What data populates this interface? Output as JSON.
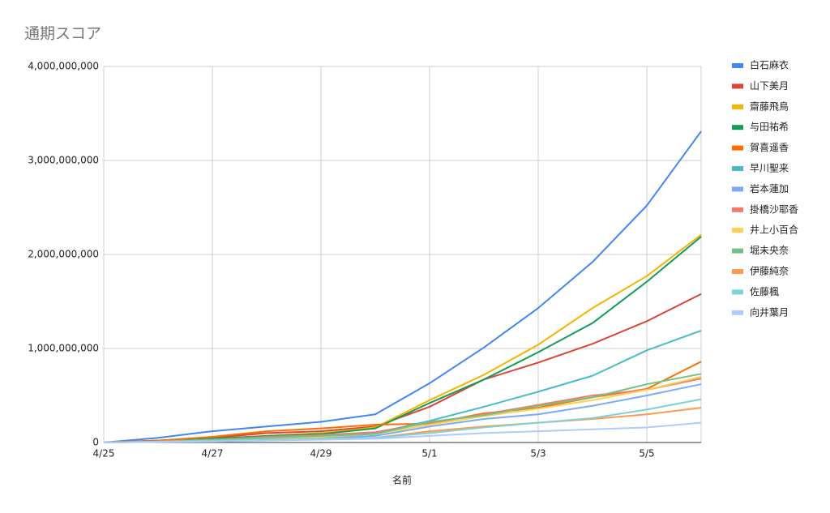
{
  "chart_data": {
    "type": "line",
    "title": "通期スコア",
    "x_label": "名前",
    "categories": [
      "4/25",
      null,
      "4/27",
      null,
      "4/29",
      null,
      "5/1",
      null,
      "5/3",
      null,
      "5/5",
      null
    ],
    "ylim": [
      0,
      4000000000
    ],
    "yticks": [
      0,
      {
        "value": 1000000000,
        "label": "1,000,000,000"
      },
      {
        "value": 2000000000,
        "label": "2,000,000,000"
      },
      {
        "value": 3000000000,
        "label": "3,000,000,000"
      },
      {
        "value": 4000000000,
        "label": "4,000,000,000"
      }
    ],
    "grid": true,
    "legend": "right",
    "series": [
      {
        "name": "白石麻衣",
        "color": "#4285f4",
        "values": [
          0,
          50000000,
          120000000,
          170000000,
          220000000,
          300000000,
          630000000,
          1010000000,
          1430000000,
          1920000000,
          2520000000,
          3310000000
        ]
      },
      {
        "name": "山下美月",
        "color": "#db4437",
        "values": [
          0,
          20000000,
          50000000,
          100000000,
          120000000,
          170000000,
          380000000,
          670000000,
          850000000,
          1050000000,
          1290000000,
          1580000000
        ]
      },
      {
        "name": "齋藤飛鳥",
        "color": "#f4b400",
        "values": [
          0,
          20000000,
          40000000,
          70000000,
          100000000,
          160000000,
          450000000,
          720000000,
          1040000000,
          1430000000,
          1770000000,
          2210000000
        ]
      },
      {
        "name": "与田祐希",
        "color": "#0f9d58",
        "values": [
          0,
          20000000,
          40000000,
          70000000,
          90000000,
          150000000,
          420000000,
          670000000,
          960000000,
          1270000000,
          1710000000,
          2190000000
        ]
      },
      {
        "name": "賀喜遥香",
        "color": "#ff6d00",
        "values": [
          0,
          20000000,
          60000000,
          120000000,
          150000000,
          190000000,
          200000000,
          310000000,
          370000000,
          480000000,
          570000000,
          860000000
        ]
      },
      {
        "name": "早川聖来",
        "color": "#46bdc6",
        "values": [
          0,
          10000000,
          30000000,
          50000000,
          70000000,
          100000000,
          230000000,
          380000000,
          540000000,
          710000000,
          980000000,
          1190000000
        ]
      },
      {
        "name": "岩本蓮加",
        "color": "#7baaf7",
        "values": [
          0,
          10000000,
          20000000,
          40000000,
          50000000,
          70000000,
          170000000,
          250000000,
          300000000,
          390000000,
          500000000,
          620000000
        ]
      },
      {
        "name": "掛橋沙耶香",
        "color": "#f07b72",
        "values": [
          0,
          10000000,
          30000000,
          60000000,
          80000000,
          110000000,
          210000000,
          300000000,
          400000000,
          500000000,
          560000000,
          680000000
        ]
      },
      {
        "name": "井上小百合",
        "color": "#fcd04f",
        "values": [
          0,
          10000000,
          20000000,
          40000000,
          60000000,
          90000000,
          190000000,
          280000000,
          360000000,
          450000000,
          560000000,
          700000000
        ]
      },
      {
        "name": "堀未央奈",
        "color": "#71c287",
        "values": [
          0,
          10000000,
          30000000,
          50000000,
          70000000,
          90000000,
          220000000,
          290000000,
          390000000,
          480000000,
          620000000,
          730000000
        ]
      },
      {
        "name": "伊藤純奈",
        "color": "#ff994d",
        "values": [
          0,
          10000000,
          20000000,
          30000000,
          40000000,
          50000000,
          120000000,
          170000000,
          210000000,
          250000000,
          300000000,
          370000000
        ]
      },
      {
        "name": "佐藤楓",
        "color": "#7ed1d7",
        "values": [
          0,
          10000000,
          20000000,
          30000000,
          40000000,
          50000000,
          100000000,
          160000000,
          210000000,
          260000000,
          350000000,
          460000000
        ]
      },
      {
        "name": "向井葉月",
        "color": "#afcbfa",
        "values": [
          0,
          5000000,
          10000000,
          20000000,
          30000000,
          40000000,
          70000000,
          100000000,
          120000000,
          140000000,
          160000000,
          210000000
        ]
      }
    ]
  }
}
